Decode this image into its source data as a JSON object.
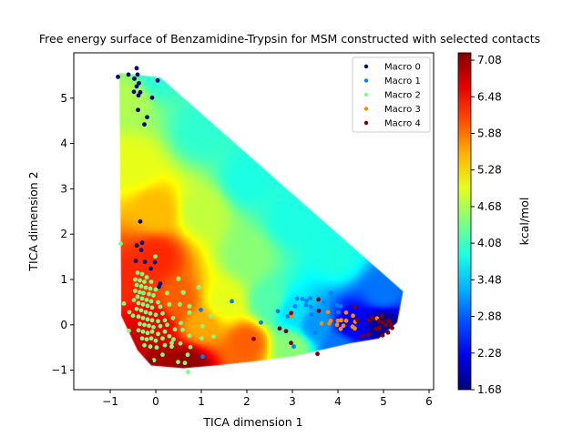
{
  "chart_data": {
    "type": "heatmap",
    "title": "Free energy surface of Benzamidine-Trypsin for MSM constructed with selected contacts",
    "xlabel": "TICA dimension 1",
    "ylabel": "TICA dimension 2",
    "xlim": [
      -1.8,
      6.1
    ],
    "ylim": [
      -1.43,
      6.0
    ],
    "xticks": [
      -1,
      0,
      1,
      2,
      3,
      4,
      5,
      6
    ],
    "yticks": [
      -1,
      0,
      1,
      2,
      3,
      4,
      5
    ],
    "grid": false,
    "colormap": "jet",
    "colorbar": {
      "label": "kcal/mol",
      "range": [
        1.68,
        7.2
      ],
      "ticks": [
        "1.68",
        "2.28",
        "2.88",
        "3.48",
        "4.08",
        "4.68",
        "5.28",
        "5.88",
        "6.48",
        "7.08"
      ]
    },
    "surface_domain": [
      [
        -0.8,
        5.56
      ],
      [
        0.1,
        5.46
      ],
      [
        5.43,
        0.74
      ],
      [
        5.3,
        0.05
      ],
      [
        4.9,
        -0.3
      ],
      [
        4.3,
        -0.4
      ],
      [
        3.6,
        -0.56
      ],
      [
        3.0,
        -0.7
      ],
      [
        2.2,
        -0.8
      ],
      [
        1.3,
        -0.9
      ],
      [
        0.6,
        -0.96
      ],
      [
        -0.1,
        -0.9
      ],
      [
        -0.4,
        -0.56
      ],
      [
        -0.76,
        0.2
      ],
      [
        -0.76,
        0.74
      ],
      [
        -0.8,
        5.56
      ]
    ],
    "surface_anchors": [
      [
        5,
        0,
        1.8
      ],
      [
        4.3,
        0,
        2.3
      ],
      [
        3.5,
        0,
        3.2
      ],
      [
        3,
        0.3,
        3.6
      ],
      [
        2.5,
        0.5,
        4.2
      ],
      [
        1.5,
        0.5,
        5.0
      ],
      [
        1,
        0,
        5.6
      ],
      [
        0.5,
        0.5,
        6.0
      ],
      [
        0,
        0,
        6.6
      ],
      [
        0,
        -0.8,
        7.0
      ],
      [
        0.7,
        -0.9,
        7.1
      ],
      [
        2,
        -0.4,
        6.0
      ],
      [
        3,
        -0.5,
        4.5
      ],
      [
        0,
        1.5,
        6.3
      ],
      [
        0,
        2.5,
        5.5
      ],
      [
        -0.5,
        3.5,
        5.0
      ],
      [
        -0.5,
        5,
        4.7
      ],
      [
        0,
        5.4,
        4.0
      ],
      [
        1,
        4.3,
        4.0
      ],
      [
        2,
        3.2,
        3.9
      ],
      [
        3,
        2.3,
        3.9
      ],
      [
        4,
        1.5,
        3.9
      ],
      [
        5,
        0.7,
        3.0
      ],
      [
        1,
        2.5,
        4.8
      ],
      [
        2,
        1.5,
        4.5
      ],
      [
        -0.7,
        1,
        6.3
      ],
      [
        -0.4,
        -0.5,
        6.8
      ],
      [
        4,
        -0.5,
        3.0
      ]
    ],
    "legend_position": "top-right",
    "series": [
      {
        "name": "Macro 0",
        "color": "#00007f",
        "points": [
          [
            -0.42,
            5.66
          ],
          [
            -0.83,
            5.47
          ],
          [
            -0.6,
            5.52
          ],
          [
            -0.4,
            5.52
          ],
          [
            -0.47,
            5.43
          ],
          [
            -0.37,
            5.33
          ],
          [
            -0.42,
            5.26
          ],
          [
            -0.48,
            5.14
          ],
          [
            -0.34,
            5.13
          ],
          [
            -0.38,
            5.06
          ],
          [
            0.04,
            5.39
          ],
          [
            -0.08,
            5.01
          ],
          [
            -0.39,
            4.74
          ],
          [
            -0.19,
            4.58
          ],
          [
            -0.25,
            4.42
          ],
          [
            -0.34,
            2.28
          ],
          [
            -0.3,
            1.81
          ],
          [
            -0.42,
            1.75
          ],
          [
            -0.32,
            1.65
          ],
          [
            -0.44,
            1.41
          ],
          [
            -0.24,
            1.39
          ],
          [
            -0.02,
            1.38
          ],
          [
            -0.11,
            1.24
          ],
          [
            0.1,
            0.91
          ],
          [
            0.07,
            0.84
          ]
        ]
      },
      {
        "name": "Macro 1",
        "color": "#0080ff",
        "points": [
          [
            2.31,
            0.05
          ],
          [
            2.68,
            0.3
          ],
          [
            2.9,
            0.19
          ],
          [
            3.06,
            0.41
          ],
          [
            3.1,
            0.58
          ],
          [
            3.22,
            0.57
          ],
          [
            3.31,
            0.53
          ],
          [
            3.39,
            0.59
          ],
          [
            3.3,
            0.44
          ],
          [
            3.4,
            0.4
          ],
          [
            3.41,
            0.23
          ],
          [
            3.84,
            0.71
          ],
          [
            3.69,
            0.5
          ],
          [
            3.98,
            0.43
          ],
          [
            4.01,
            0.28
          ],
          [
            4.06,
            0.41
          ],
          [
            3.5,
            -0.17
          ],
          [
            3.03,
            -0.48
          ],
          [
            1.67,
            0.52
          ],
          [
            0.99,
            0.33
          ],
          [
            1.03,
            -0.7
          ]
        ]
      },
      {
        "name": "Macro 2",
        "color": "#7dff7a",
        "points": [
          [
            0.5,
            1.01
          ],
          [
            0.95,
            0.83
          ],
          [
            0.61,
            0.71
          ],
          [
            -0.7,
            0.47
          ],
          [
            -0.58,
            0.28
          ],
          [
            -0.59,
            -0.13
          ],
          [
            1.21,
            0.19
          ],
          [
            1.03,
            -0.03
          ],
          [
            0.74,
            0.41
          ],
          [
            0.53,
            0.45
          ],
          [
            0.74,
            0.27
          ],
          [
            0.55,
            0.04
          ],
          [
            0.59,
            -0.11
          ],
          [
            0.74,
            -0.24
          ],
          [
            1.01,
            -0.3
          ],
          [
            1.27,
            -0.26
          ],
          [
            0.39,
            -0.32
          ],
          [
            0.54,
            -0.41
          ],
          [
            0.35,
            -0.48
          ],
          [
            0.76,
            -0.49
          ],
          [
            0.7,
            -0.66
          ],
          [
            0.49,
            -0.82
          ],
          [
            0.64,
            -0.84
          ],
          [
            0.71,
            -1.04
          ],
          [
            0.15,
            -0.66
          ],
          [
            -0.04,
            -0.78
          ],
          [
            -0.77,
            1.79
          ],
          [
            -0.01,
            1.51
          ],
          [
            0.5,
            1.02
          ],
          [
            0.94,
            0.82
          ],
          [
            0.6,
            0.72
          ],
          [
            -0.4,
            1.15
          ],
          [
            -0.3,
            1.12
          ],
          [
            -0.2,
            1.05
          ],
          [
            -0.45,
            1.0
          ],
          [
            -0.35,
            0.98
          ],
          [
            -0.25,
            0.95
          ],
          [
            -0.1,
            0.95
          ],
          [
            -0.42,
            0.88
          ],
          [
            -0.32,
            0.85
          ],
          [
            -0.22,
            0.82
          ],
          [
            -0.12,
            0.8
          ],
          [
            0.0,
            0.78
          ],
          [
            -0.45,
            0.75
          ],
          [
            -0.35,
            0.72
          ],
          [
            -0.27,
            0.7
          ],
          [
            -0.15,
            0.68
          ],
          [
            -0.05,
            0.65
          ],
          [
            -0.4,
            0.62
          ],
          [
            -0.3,
            0.58
          ],
          [
            -0.2,
            0.55
          ],
          [
            -0.1,
            0.52
          ],
          [
            0.05,
            0.5
          ],
          [
            -0.38,
            0.48
          ],
          [
            -0.28,
            0.45
          ],
          [
            -0.18,
            0.42
          ],
          [
            -0.08,
            0.38
          ],
          [
            0.1,
            0.4
          ],
          [
            -0.42,
            0.35
          ],
          [
            -0.32,
            0.32
          ],
          [
            -0.22,
            0.28
          ],
          [
            -0.12,
            0.25
          ],
          [
            0.0,
            0.22
          ],
          [
            0.15,
            0.25
          ],
          [
            -0.38,
            0.18
          ],
          [
            -0.28,
            0.15
          ],
          [
            -0.18,
            0.12
          ],
          [
            -0.08,
            0.1
          ],
          [
            0.05,
            0.08
          ],
          [
            0.2,
            0.1
          ],
          [
            -0.35,
            0.02
          ],
          [
            -0.25,
            0.0
          ],
          [
            -0.15,
            -0.02
          ],
          [
            -0.05,
            -0.05
          ],
          [
            0.1,
            -0.03
          ],
          [
            0.25,
            0.0
          ],
          [
            -0.38,
            -0.12
          ],
          [
            -0.28,
            -0.15
          ],
          [
            -0.18,
            -0.18
          ],
          [
            -0.08,
            -0.15
          ],
          [
            0.05,
            -0.2
          ],
          [
            0.2,
            -0.15
          ],
          [
            -0.3,
            -0.3
          ],
          [
            -0.2,
            -0.32
          ],
          [
            -0.1,
            -0.3
          ],
          [
            0.0,
            -0.35
          ],
          [
            0.15,
            -0.3
          ],
          [
            0.3,
            -0.25
          ],
          [
            -0.25,
            -0.45
          ],
          [
            -0.12,
            -0.48
          ],
          [
            0.02,
            -0.5
          ],
          [
            0.2,
            -0.45
          ],
          [
            0.35,
            -0.4
          ],
          [
            0.42,
            -0.1
          ],
          [
            0.38,
            0.15
          ],
          [
            0.3,
            0.45
          ],
          [
            0.25,
            0.7
          ],
          [
            -0.48,
            0.55
          ],
          [
            -0.5,
            0.2
          ]
        ]
      },
      {
        "name": "Macro 3",
        "color": "#ff8c00",
        "points": [
          [
            2.98,
            0.19
          ],
          [
            3.78,
            0.28
          ],
          [
            3.64,
            0.03
          ],
          [
            3.84,
            0.09
          ],
          [
            3.81,
            0.03
          ],
          [
            4.0,
            0.09
          ],
          [
            4.07,
            0.1
          ],
          [
            4.18,
            0.09
          ],
          [
            4.18,
            0.27
          ],
          [
            4.33,
            0.2
          ],
          [
            3.98,
            0.0
          ],
          [
            4.12,
            -0.02
          ],
          [
            4.06,
            -0.09
          ],
          [
            4.32,
            -0.04
          ],
          [
            4.37,
            -0.08
          ],
          [
            4.38,
            0.07
          ],
          [
            4.86,
            0.14
          ]
        ]
      },
      {
        "name": "Macro 4",
        "color": "#7f0000",
        "points": [
          [
            3.57,
            0.56
          ],
          [
            2.97,
            0.26
          ],
          [
            3.58,
            0.31
          ],
          [
            4.36,
            0.39
          ],
          [
            2.72,
            -0.08
          ],
          [
            2.86,
            -0.14
          ],
          [
            2.15,
            -0.31
          ],
          [
            2.97,
            -0.4
          ],
          [
            3.55,
            -0.64
          ],
          [
            4.43,
            0.1
          ],
          [
            4.54,
            -0.25
          ],
          [
            4.67,
            -0.21
          ],
          [
            4.68,
            0.1
          ],
          [
            4.76,
            0.15
          ],
          [
            4.96,
            0.19
          ],
          [
            4.9,
            0.09
          ],
          [
            4.83,
            -0.09
          ],
          [
            4.98,
            0.05
          ],
          [
            5.06,
            -0.01
          ],
          [
            5.11,
            0.09
          ],
          [
            5.16,
            0.01
          ],
          [
            4.98,
            -0.23
          ],
          [
            5.1,
            -0.17
          ],
          [
            5.19,
            -0.07
          ],
          [
            4.91,
            -0.06
          ],
          [
            -0.11,
            -0.8
          ]
        ]
      }
    ]
  }
}
